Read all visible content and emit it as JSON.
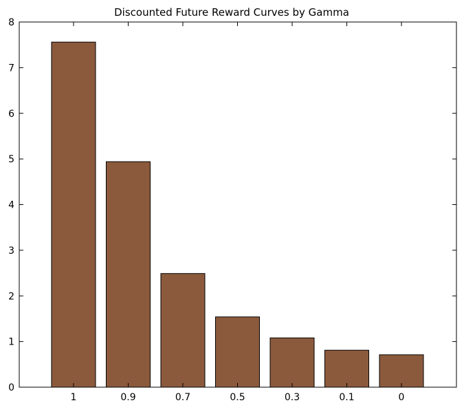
{
  "chart_data": {
    "type": "bar",
    "title": "Discounted Future Reward Curves by Gamma",
    "xlabel": "",
    "ylabel": "",
    "categories": [
      "1",
      "0.9",
      "0.7",
      "0.5",
      "0.3",
      "0.1",
      "0"
    ],
    "values": [
      7.56,
      4.94,
      2.49,
      1.54,
      1.08,
      0.81,
      0.71
    ],
    "ylim": [
      0,
      8
    ],
    "yticks": [
      "0",
      "1",
      "2",
      "3",
      "4",
      "5",
      "6",
      "7",
      "8"
    ],
    "grid": false,
    "legend": "none",
    "bar_color": "#8b5a3c"
  }
}
